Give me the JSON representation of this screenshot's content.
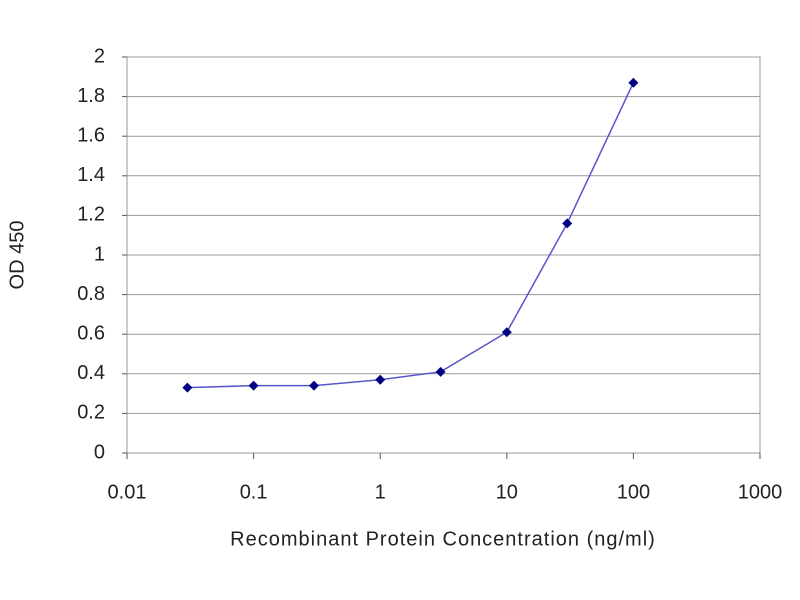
{
  "chart_data": {
    "type": "line",
    "xlabel": "Recombinant Protein Concentration (ng/ml)",
    "ylabel": "OD 450",
    "x": [
      0.03,
      0.1,
      0.3,
      1,
      3,
      10,
      30,
      100
    ],
    "series": [
      {
        "color": "#5555cc",
        "marker_color": "#000080",
        "values": [
          0.33,
          0.34,
          0.34,
          0.37,
          0.41,
          0.61,
          1.16,
          1.87
        ]
      }
    ],
    "xscale": "log",
    "xlim": [
      0.01,
      1000
    ],
    "xticks": [
      0.01,
      0.1,
      1,
      10,
      100,
      1000
    ],
    "ylim": [
      0,
      2
    ],
    "yticks": [
      0,
      0.2,
      0.4,
      0.6,
      0.8,
      1,
      1.2,
      1.4,
      1.6,
      1.8,
      2
    ],
    "grid": true
  }
}
